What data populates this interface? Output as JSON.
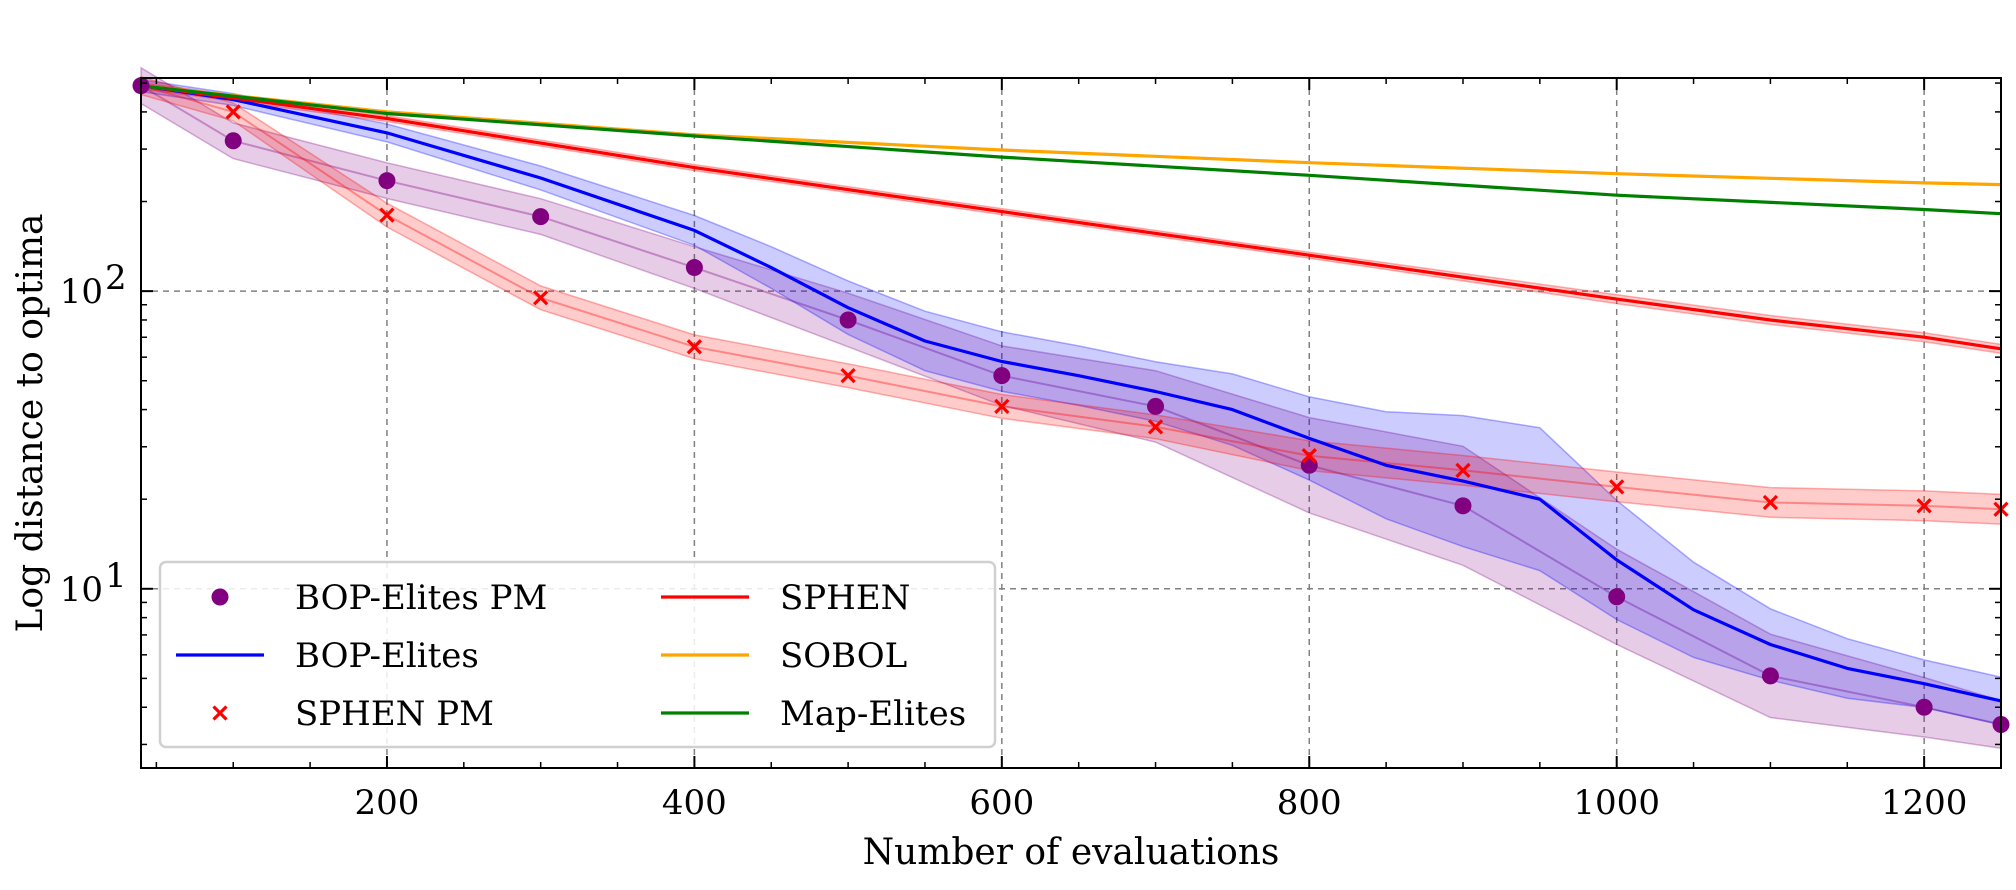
{
  "chart_data": {
    "type": "line",
    "title": "",
    "xlabel": "Number of evaluations",
    "ylabel": "Log distance to optima",
    "xlim": [
      40,
      1250
    ],
    "ylim": [
      2.5,
      520
    ],
    "yscale": "log",
    "grid": true,
    "legend_position": "lower-left",
    "x_ticks": [
      200,
      400,
      600,
      800,
      1000,
      1200
    ],
    "x_tick_labels": [
      "200",
      "400",
      "600",
      "800",
      "1000",
      "1200"
    ],
    "y_ticks": [
      10,
      100
    ],
    "y_tick_labels": [
      {
        "base": "10",
        "exp": "1"
      },
      {
        "base": "10",
        "exp": "2"
      }
    ],
    "series": [
      {
        "name": "BOP-Elites PM",
        "style": "marker-circle",
        "color": "#800080",
        "band_color": "#800080",
        "x": [
          40,
          100,
          200,
          300,
          400,
          500,
          600,
          700,
          800,
          900,
          1000,
          1100,
          1200,
          1250
        ],
        "y": [
          490,
          320,
          235,
          178,
          120,
          80,
          52,
          41,
          26,
          19,
          9.4,
          5.1,
          4.0,
          3.5
        ],
        "band": [
          0.06,
          0.06,
          0.06,
          0.06,
          0.07,
          0.09,
          0.1,
          0.12,
          0.16,
          0.2,
          0.16,
          0.14,
          0.1,
          0.08
        ]
      },
      {
        "name": "BOP-Elites",
        "style": "line",
        "color": "#0000ff",
        "band_color": "#0000ff",
        "x": [
          40,
          100,
          200,
          300,
          400,
          450,
          500,
          550,
          600,
          650,
          700,
          750,
          800,
          850,
          900,
          950,
          1000,
          1050,
          1100,
          1150,
          1200,
          1250
        ],
        "y": [
          490,
          440,
          340,
          240,
          160,
          120,
          88,
          68,
          58,
          52,
          46,
          40,
          32,
          26,
          23,
          20,
          12.5,
          8.5,
          6.5,
          5.4,
          4.8,
          4.2
        ],
        "band": [
          0.02,
          0.02,
          0.03,
          0.04,
          0.05,
          0.07,
          0.09,
          0.1,
          0.1,
          0.1,
          0.1,
          0.12,
          0.14,
          0.18,
          0.22,
          0.24,
          0.2,
          0.16,
          0.12,
          0.1,
          0.08,
          0.08
        ]
      },
      {
        "name": "SPHEN PM",
        "style": "marker-x",
        "color": "#ff0000",
        "band_color": "#ff0000",
        "x": [
          40,
          100,
          200,
          300,
          400,
          500,
          600,
          700,
          800,
          900,
          1000,
          1100,
          1200,
          1250
        ],
        "y": [
          490,
          400,
          180,
          95,
          65,
          52,
          41,
          35,
          28,
          25,
          22,
          19.5,
          19,
          18.5
        ],
        "band": [
          0.03,
          0.03,
          0.04,
          0.04,
          0.04,
          0.04,
          0.04,
          0.04,
          0.05,
          0.05,
          0.05,
          0.05,
          0.05,
          0.05
        ]
      },
      {
        "name": "SPHEN",
        "style": "line",
        "color": "#ff0000",
        "band_color": "#ff0000",
        "x": [
          40,
          200,
          400,
          600,
          800,
          1000,
          1100,
          1200,
          1250
        ],
        "y": [
          490,
          380,
          260,
          185,
          132,
          94,
          80,
          70,
          64
        ],
        "band": [
          0.01,
          0.01,
          0.01,
          0.01,
          0.01,
          0.015,
          0.015,
          0.015,
          0.015
        ]
      },
      {
        "name": "SOBOL",
        "style": "line",
        "color": "#ffa500",
        "band_color": "#ffa500",
        "x": [
          40,
          200,
          400,
          600,
          800,
          1000,
          1200,
          1250
        ],
        "y": [
          490,
          400,
          335,
          298,
          270,
          248,
          231,
          228
        ],
        "band": [
          0,
          0,
          0,
          0,
          0,
          0,
          0,
          0
        ]
      },
      {
        "name": "Map-Elites",
        "style": "line",
        "color": "#008000",
        "band_color": "#008000",
        "x": [
          40,
          200,
          400,
          600,
          800,
          1000,
          1200,
          1250
        ],
        "y": [
          490,
          395,
          332,
          282,
          245,
          210,
          188,
          182
        ],
        "band": [
          0,
          0,
          0,
          0,
          0,
          0,
          0,
          0
        ]
      }
    ],
    "legend_order": [
      0,
      1,
      2,
      3,
      4,
      5
    ]
  }
}
